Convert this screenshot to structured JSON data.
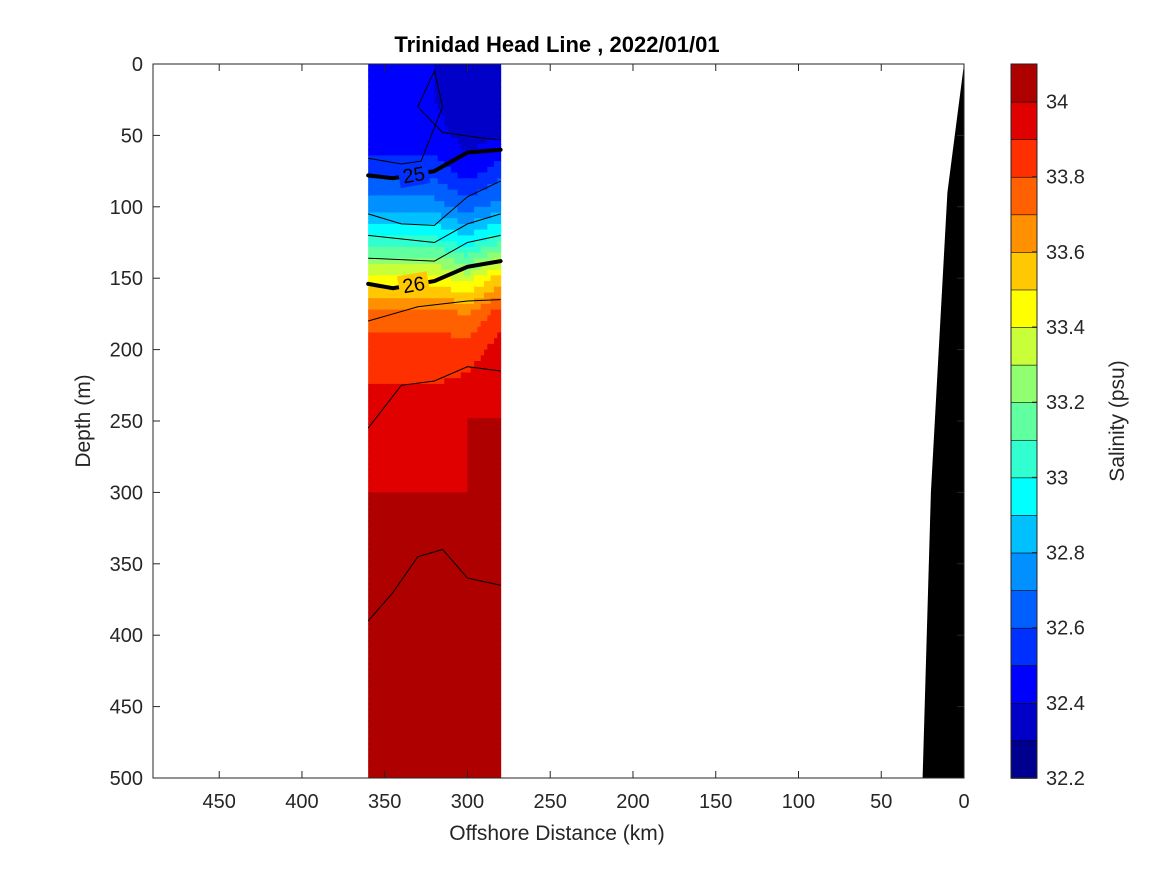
{
  "chart_data": {
    "type": "heatmap",
    "title": "Trinidad Head Line , 2022/01/01",
    "xlabel": "Offshore Distance (km)",
    "ylabel": "Depth (m)",
    "xlim": [
      490,
      0
    ],
    "ylim": [
      0,
      500
    ],
    "x_reversed": true,
    "y_reversed": true,
    "x_ticks": [
      "450",
      "400",
      "350",
      "300",
      "250",
      "200",
      "150",
      "100",
      "50",
      "0"
    ],
    "y_ticks": [
      "0",
      "50",
      "100",
      "150",
      "200",
      "250",
      "300",
      "350",
      "400",
      "450",
      "500"
    ],
    "x_tick_values": [
      450,
      400,
      350,
      300,
      250,
      200,
      150,
      100,
      50,
      0
    ],
    "y_tick_values": [
      0,
      50,
      100,
      150,
      200,
      250,
      300,
      350,
      400,
      450,
      500
    ],
    "data_extent_km": [
      360,
      280
    ],
    "colorbar": {
      "label": "Salinity (psu)",
      "range": [
        32.2,
        34.1
      ],
      "tick_labels": [
        "32.2",
        "32.4",
        "32.6",
        "32.8",
        "33",
        "33.2",
        "33.4",
        "33.6",
        "33.8",
        "34"
      ],
      "tick_values": [
        32.2,
        32.4,
        32.6,
        32.8,
        33.0,
        33.2,
        33.4,
        33.6,
        33.8,
        34.0
      ],
      "levels": [
        32.2,
        32.3,
        32.4,
        32.5,
        32.6,
        32.7,
        32.8,
        32.9,
        33.0,
        33.1,
        33.2,
        33.3,
        33.4,
        33.5,
        33.6,
        33.7,
        33.8,
        33.9,
        34.0,
        34.1
      ],
      "colors": [
        "#00008f",
        "#0000c8",
        "#0000ff",
        "#0030ff",
        "#0060ff",
        "#0090ff",
        "#00c0ff",
        "#00ffff",
        "#30ffcf",
        "#60ff9f",
        "#90ff70",
        "#c8ff38",
        "#ffff00",
        "#ffc800",
        "#ff9000",
        "#ff6000",
        "#ff3000",
        "#e00000",
        "#af0000"
      ]
    },
    "depth_profile": {
      "x_km": [
        320,
        300,
        280
      ],
      "salinity_by_depth": [
        {
          "depth": 0,
          "values": [
            32.4,
            32.35,
            32.35
          ]
        },
        {
          "depth": 25,
          "values": [
            32.4,
            32.3,
            32.35
          ]
        },
        {
          "depth": 50,
          "values": [
            32.45,
            32.35,
            32.4
          ]
        },
        {
          "depth": 75,
          "values": [
            32.55,
            32.45,
            32.55
          ]
        },
        {
          "depth": 100,
          "values": [
            32.75,
            32.65,
            32.75
          ]
        },
        {
          "depth": 125,
          "values": [
            33.05,
            32.95,
            33.1
          ]
        },
        {
          "depth": 150,
          "values": [
            33.45,
            33.35,
            33.55
          ]
        },
        {
          "depth": 175,
          "values": [
            33.75,
            33.7,
            33.85
          ]
        },
        {
          "depth": 200,
          "values": [
            33.85,
            33.85,
            33.95
          ]
        },
        {
          "depth": 250,
          "values": [
            33.95,
            34.0,
            34.0
          ]
        },
        {
          "depth": 300,
          "values": [
            34.0,
            34.0,
            34.0
          ]
        },
        {
          "depth": 350,
          "values": [
            34.0,
            34.02,
            34.0
          ]
        },
        {
          "depth": 400,
          "values": [
            34.05,
            34.05,
            34.05
          ]
        },
        {
          "depth": 450,
          "values": [
            34.05,
            34.05,
            34.05
          ]
        },
        {
          "depth": 500,
          "values": [
            34.07,
            34.07,
            34.05
          ]
        }
      ]
    },
    "density_contours": [
      {
        "label": "25",
        "bold": true,
        "points": [
          [
            360,
            78
          ],
          [
            345,
            80
          ],
          [
            320,
            75
          ],
          [
            300,
            62
          ],
          [
            280,
            60
          ]
        ]
      },
      {
        "label": "26",
        "bold": true,
        "points": [
          [
            360,
            154
          ],
          [
            345,
            157
          ],
          [
            320,
            152
          ],
          [
            300,
            142
          ],
          [
            280,
            138
          ]
        ]
      }
    ],
    "thin_contours": [
      [
        [
          360,
          66
        ],
        [
          340,
          70
        ],
        [
          328,
          68
        ],
        [
          315,
          30
        ],
        [
          320,
          5
        ],
        [
          330,
          30
        ],
        [
          315,
          48
        ],
        [
          290,
          52
        ],
        [
          280,
          53
        ]
      ],
      [
        [
          360,
          105
        ],
        [
          340,
          112
        ],
        [
          320,
          113
        ],
        [
          300,
          93
        ],
        [
          280,
          82
        ]
      ],
      [
        [
          360,
          120
        ],
        [
          320,
          125
        ],
        [
          300,
          112
        ],
        [
          280,
          105
        ]
      ],
      [
        [
          360,
          136
        ],
        [
          320,
          138
        ],
        [
          300,
          125
        ],
        [
          280,
          120
        ]
      ],
      [
        [
          360,
          180
        ],
        [
          330,
          170
        ],
        [
          300,
          166
        ],
        [
          280,
          165
        ]
      ],
      [
        [
          360,
          255
        ],
        [
          340,
          225
        ],
        [
          320,
          222
        ],
        [
          300,
          212
        ],
        [
          280,
          215
        ]
      ],
      [
        [
          360,
          390
        ],
        [
          345,
          370
        ],
        [
          330,
          345
        ],
        [
          315,
          340
        ],
        [
          300,
          360
        ],
        [
          280,
          365
        ]
      ]
    ],
    "bathymetry": {
      "points": [
        [
          25,
          500
        ],
        [
          20,
          300
        ],
        [
          10,
          90
        ],
        [
          0,
          0
        ]
      ],
      "color": "#000000"
    }
  }
}
